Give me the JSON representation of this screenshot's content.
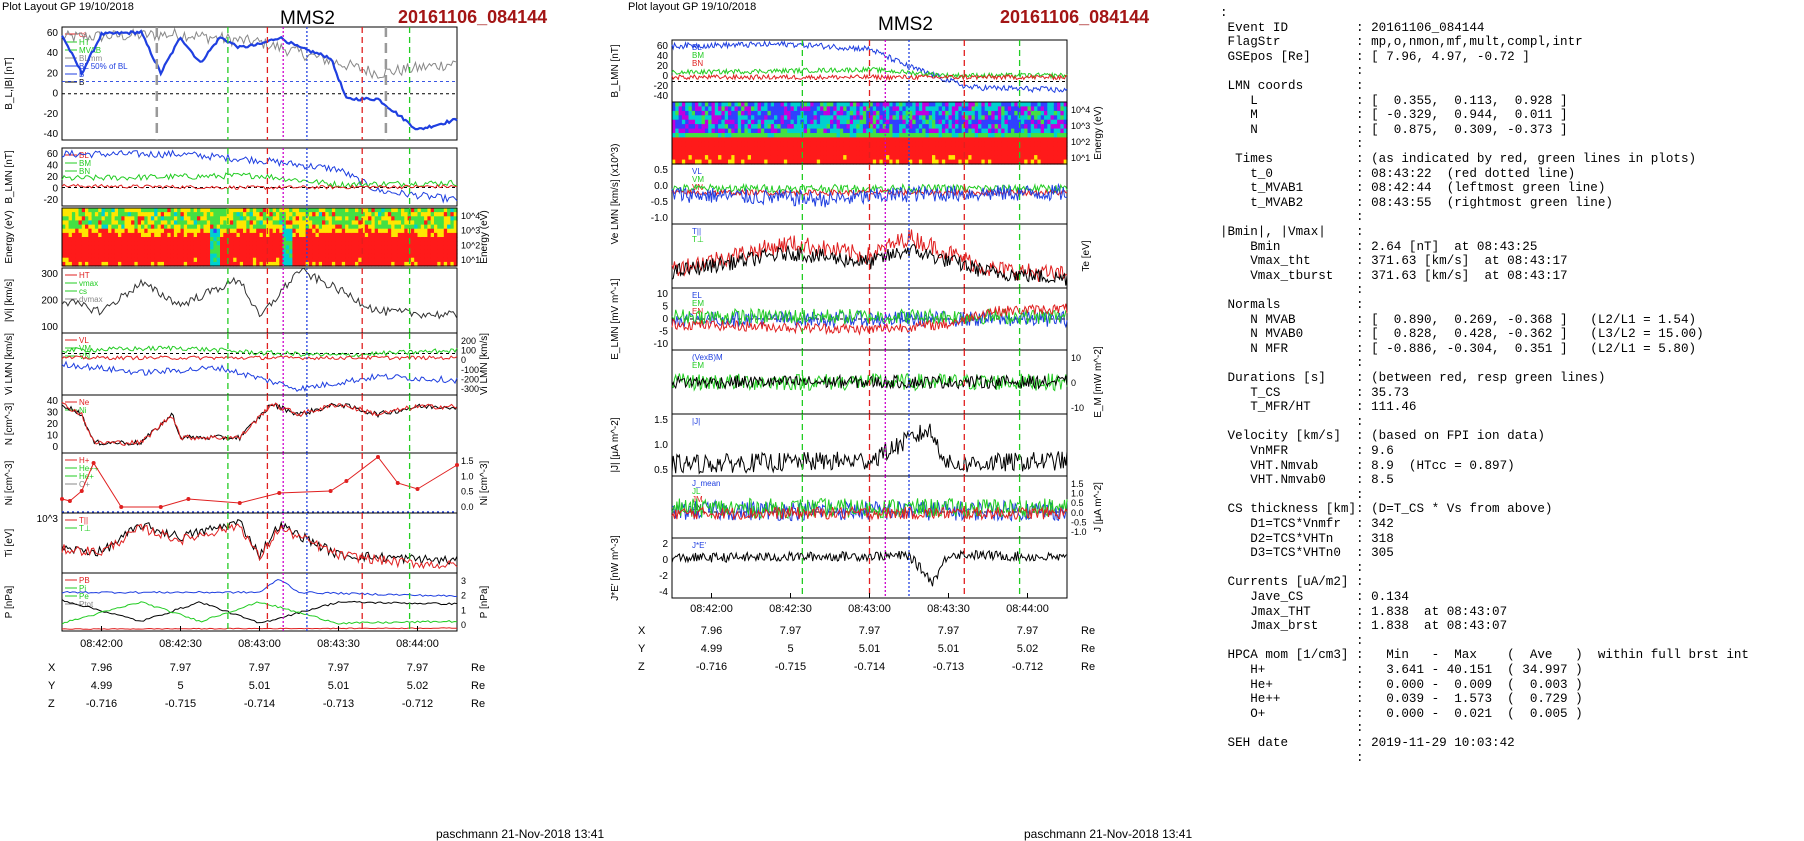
{
  "left_figure": {
    "header": "Plot Layout GP 19/10/2018",
    "mms": "MMS2",
    "event": "20161106_084144",
    "footer": "paschmann 21-Nov-2018 13:41",
    "time_ticks": [
      "08:42:00",
      "08:42:30",
      "08:43:00",
      "08:43:30",
      "08:44:00"
    ],
    "panels": [
      {
        "id": "BL",
        "ylabel": "B_L,|B| [nT]",
        "ylim": [
          -45,
          65
        ],
        "ticks": [
          "60",
          "40",
          "20",
          "0",
          "-20",
          "-40"
        ],
        "legend": [
          "cs",
          "HT",
          "MVAB",
          "BLmm",
          "BL 50% of BL",
          "B",
          "B"
        ]
      },
      {
        "id": "BLMN",
        "ylabel": "B_LMN [nT]",
        "ylim": [
          -30,
          65
        ],
        "ticks": [
          "60",
          "40",
          "20",
          "0",
          "-20"
        ],
        "legend": [
          "BL",
          "BM",
          "BN"
        ]
      },
      {
        "id": "Espec",
        "ylabel": "Energy (eV)",
        "ticks_right": [
          "10^4",
          "10^3",
          "10^2",
          "10^1"
        ]
      },
      {
        "id": "Vi",
        "ylabel": "|Vi| [km/s]",
        "ticks": [
          "300",
          "200",
          "100"
        ],
        "legend": [
          "HT",
          "vmax",
          "cs",
          "dvmax"
        ]
      },
      {
        "id": "ViLMN",
        "ylabel": "Vi LMN [km/s]",
        "ticks_right": [
          "200",
          "100",
          "0",
          "-100",
          "-200",
          "-300"
        ],
        "legend": [
          "VL",
          "VM",
          "VN"
        ]
      },
      {
        "id": "N",
        "ylabel": "N [cm^-3]",
        "ticks": [
          "40",
          "30",
          "20",
          "10",
          "0"
        ],
        "legend": [
          "Ne",
          "Ni"
        ]
      },
      {
        "id": "Ni",
        "ylabel": "Ni [cm^-3]",
        "ticks_right": [
          "1.5",
          "1.0",
          "0.5",
          "0.0"
        ],
        "legend": [
          "H+",
          "He++",
          "He+",
          "O+"
        ]
      },
      {
        "id": "Ti",
        "ylabel": "Ti [eV]",
        "ticks": [
          "10^3"
        ],
        "legend": [
          "T||",
          "T⊥"
        ]
      },
      {
        "id": "P",
        "ylabel": "P [nPa]",
        "ticks_right": [
          "3",
          "2",
          "1",
          "0"
        ],
        "legend": [
          "PB",
          "Pi",
          "Pe",
          "Ptot"
        ]
      }
    ],
    "x_row": {
      "label": "X",
      "values": [
        "7.96",
        "7.97",
        "7.97",
        "7.97",
        "7.97"
      ],
      "unit": "Re"
    },
    "y_row": {
      "label": "Y",
      "values": [
        "4.99",
        "5",
        "5.01",
        "5.01",
        "5.02"
      ],
      "unit": "Re"
    },
    "z_row": {
      "label": "Z",
      "values": [
        "-0.716",
        "-0.715",
        "-0.714",
        "-0.713",
        "-0.712"
      ],
      "unit": "Re"
    }
  },
  "right_figure": {
    "header": "Plot layout GP 19/10/2018",
    "mms": "MMS2",
    "event": "20161106_084144",
    "footer": "paschmann 21-Nov-2018 13:41",
    "time_ticks": [
      "08:42:00",
      "08:42:30",
      "08:43:00",
      "08:43:30",
      "08:44:00"
    ],
    "panels": [
      {
        "id": "BLMN",
        "ylabel": "B_LMN [nT]",
        "ticks": [
          "60",
          "40",
          "20",
          "0",
          "-20",
          "-40"
        ],
        "legend": [
          "BL",
          "BM",
          "BN"
        ]
      },
      {
        "id": "Espec",
        "ylabel": "Energy (eV)",
        "ticks_right": [
          "10^4",
          "10^3",
          "10^2",
          "10^1"
        ]
      },
      {
        "id": "VeLMN",
        "ylabel": "Ve LMN [km/s] (x10^3)",
        "ticks": [
          "0.5",
          "0.0",
          "-0.5",
          "-1.0"
        ],
        "legend": [
          "VL",
          "VM",
          "VN"
        ]
      },
      {
        "id": "Te",
        "ylabel": "Te [eV]",
        "legend": [
          "T||",
          "T⊥"
        ]
      },
      {
        "id": "ELMN",
        "ylabel": "E_LMN [mV m^-1]",
        "ticks": [
          "10",
          "5",
          "0",
          "-5",
          "-10"
        ],
        "legend": [
          "EL",
          "EM",
          "EN"
        ]
      },
      {
        "id": "EM",
        "ylabel": "E_M [mW m^-2]",
        "ticks_right": [
          "10",
          "0",
          "-10"
        ],
        "legend": [
          "(VexB)M",
          "EM"
        ]
      },
      {
        "id": "J",
        "ylabel": "|J| [μA m^-2]",
        "ticks": [
          "1.5",
          "1.0",
          "0.5"
        ],
        "legend": [
          "|J|"
        ]
      },
      {
        "id": "JLMN",
        "ylabel": "J [μA m^-2]",
        "ticks_right": [
          "1.5",
          "1.0",
          "0.5",
          "0.0",
          "-0.5",
          "-1.0"
        ],
        "legend": [
          "J_mean",
          "JL",
          "JM",
          "JN"
        ]
      },
      {
        "id": "JE",
        "ylabel": "J*E' [nW m^-3]",
        "ticks": [
          "2",
          "0",
          "-2",
          "-4"
        ],
        "legend": [
          "J*E'"
        ]
      }
    ],
    "x_row": {
      "label": "X",
      "values": [
        "7.96",
        "7.97",
        "7.97",
        "7.97",
        "7.97"
      ],
      "unit": "Re"
    },
    "y_row": {
      "label": "Y",
      "values": [
        "4.99",
        "5",
        "5.01",
        "5.01",
        "5.02"
      ],
      "unit": "Re"
    },
    "z_row": {
      "label": "Z",
      "values": [
        "-0.716",
        "-0.715",
        "-0.714",
        "-0.713",
        "-0.712"
      ],
      "unit": "Re"
    }
  },
  "chart_data": [
    {
      "type": "line",
      "title": "MMS2 20161106_084144",
      "xlabel": "",
      "x_ticks": [
        "08:42:00",
        "08:42:30",
        "08:43:00",
        "08:43:30",
        "08:44:00"
      ],
      "panels": [
        {
          "ylabel": "B_L,|B| [nT]",
          "ylim": [
            -45,
            65
          ],
          "series": [
            {
              "name": "BL",
              "points": [
                [
                  0,
                  57
                ],
                [
                  0.05,
                  20
                ],
                [
                  0.1,
                  58
                ],
                [
                  0.2,
                  60
                ],
                [
                  0.25,
                  20
                ],
                [
                  0.3,
                  55
                ],
                [
                  0.35,
                  30
                ],
                [
                  0.4,
                  55
                ],
                [
                  0.45,
                  45
                ],
                [
                  0.5,
                  48
                ],
                [
                  0.55,
                  55
                ],
                [
                  0.6,
                  45
                ],
                [
                  0.68,
                  35
                ],
                [
                  0.72,
                  -5
                ],
                [
                  0.8,
                  -5
                ],
                [
                  0.9,
                  -35
                ],
                [
                  1.0,
                  -25
                ]
              ]
            }
          ]
        },
        {
          "ylabel": "N [cm^-3]",
          "ylim": [
            0,
            45
          ],
          "series": [
            {
              "name": "Ni",
              "points": [
                [
                  0,
                  38
                ],
                [
                  0.05,
                  30
                ],
                [
                  0.08,
                  8
                ],
                [
                  0.2,
                  8
                ],
                [
                  0.28,
                  30
                ],
                [
                  0.3,
                  12
                ],
                [
                  0.45,
                  12
                ],
                [
                  0.5,
                  28
                ],
                [
                  0.53,
                  38
                ],
                [
                  0.6,
                  30
                ],
                [
                  0.7,
                  38
                ],
                [
                  0.8,
                  30
                ],
                [
                  0.9,
                  36
                ],
                [
                  1.0,
                  36
                ]
              ]
            }
          ]
        },
        {
          "ylabel": "Ni [cm^-3]",
          "ylim": [
            0,
            1.5
          ],
          "series": [
            {
              "name": "He++",
              "points": [
                [
                  0,
                  0.35
                ],
                [
                  0.02,
                  0.3
                ],
                [
                  0.05,
                  0.55
                ],
                [
                  0.08,
                  1.25
                ],
                [
                  0.15,
                  0.15
                ],
                [
                  0.25,
                  0.15
                ],
                [
                  0.32,
                  0.35
                ],
                [
                  0.45,
                  0.25
                ],
                [
                  0.55,
                  0.5
                ],
                [
                  0.68,
                  0.55
                ],
                [
                  0.72,
                  0.8
                ],
                [
                  0.8,
                  1.4
                ],
                [
                  0.85,
                  0.75
                ],
                [
                  0.9,
                  0.6
                ],
                [
                  1.0,
                  1.2
                ]
              ]
            }
          ]
        }
      ]
    },
    {
      "type": "line",
      "title": "MMS2 20161106_084144",
      "xlabel": "",
      "x_ticks": [
        "08:42:00",
        "08:42:30",
        "08:43:00",
        "08:43:30",
        "08:44:00"
      ],
      "panels": [
        {
          "ylabel": "|J| [μA m^-2]",
          "ylim": [
            0,
            1.6
          ],
          "series": [
            {
              "name": "|J|",
              "points": [
                [
                  0,
                  0.3
                ],
                [
                  0.5,
                  0.4
                ],
                [
                  0.65,
                  1.2
                ],
                [
                  0.7,
                  0.3
                ],
                [
                  1.0,
                  0.4
                ]
              ]
            }
          ]
        },
        {
          "ylabel": "J*E' [nW m^-3]",
          "ylim": [
            -5,
            2.5
          ],
          "series": [
            {
              "name": "J*E'",
              "points": [
                [
                  0,
                  0
                ],
                [
                  0.6,
                  0.3
                ],
                [
                  0.66,
                  -3
                ],
                [
                  0.7,
                  0.5
                ],
                [
                  1.0,
                  0
                ]
              ]
            }
          ]
        }
      ]
    }
  ],
  "info_panel": {
    "lines": [
      {
        "label": ":",
        "value": ""
      },
      {
        "label": " Event ID",
        "value": ": 20161106_084144"
      },
      {
        "label": " FlagStr",
        "value": ": mp,o,nmon,mf,mult,compl,intr"
      },
      {
        "label": " GSEpos [Re]",
        "value": ": [ 7.96, 4.97, -0.72 ]"
      },
      {
        "label": "",
        "value": ":"
      },
      {
        "label": " LMN coords",
        "value": ":"
      },
      {
        "label": "    L",
        "value": ": [  0.355,  0.113,  0.928 ]"
      },
      {
        "label": "    M",
        "value": ": [ -0.329,  0.944,  0.011 ]"
      },
      {
        "label": "    N",
        "value": ": [  0.875,  0.309, -0.373 ]"
      },
      {
        "label": "",
        "value": ":"
      },
      {
        "label": "  Times",
        "value": ": (as indicated by red, green lines in plots)"
      },
      {
        "label": "    t_0",
        "value": ": 08:43:22  (red dotted line)"
      },
      {
        "label": "    t_MVAB1",
        "value": ": 08:42:44  (leftmost green line)"
      },
      {
        "label": "    t_MVAB2",
        "value": ": 08:43:55  (rightmost green line)"
      },
      {
        "label": "",
        "value": ":"
      },
      {
        "label": "|Bmin|, |Vmax|",
        "value": ":"
      },
      {
        "label": "    Bmin",
        "value": ": 2.64 [nT]  at 08:43:25"
      },
      {
        "label": "    Vmax_tht",
        "value": ": 371.63 [km/s]  at 08:43:17"
      },
      {
        "label": "    Vmax_tburst",
        "value": ": 371.63 [km/s]  at 08:43:17"
      },
      {
        "label": "",
        "value": ":"
      },
      {
        "label": " Normals",
        "value": ":"
      },
      {
        "label": "    N MVAB",
        "value": ": [  0.890,  0.269, -0.368 ]   (L2/L1 = 1.54)"
      },
      {
        "label": "    N MVAB0",
        "value": ": [  0.828,  0.428, -0.362 ]   (L3/L2 = 15.00)"
      },
      {
        "label": "    N MFR",
        "value": ": [ -0.886, -0.304,  0.351 ]   (L2/L1 = 5.80)"
      },
      {
        "label": "",
        "value": ":"
      },
      {
        "label": " Durations [s]",
        "value": ": (between red, resp green lines)"
      },
      {
        "label": "    T_CS",
        "value": ": 35.73"
      },
      {
        "label": "    T_MFR/HT",
        "value": ": 111.46"
      },
      {
        "label": "",
        "value": ":"
      },
      {
        "label": " Velocity [km/s]",
        "value": ": (based on FPI ion data)"
      },
      {
        "label": "    VnMFR",
        "value": ": 9.6"
      },
      {
        "label": "    VHT.Nmvab",
        "value": ": 8.9  (HTcc = 0.897)"
      },
      {
        "label": "    VHT.Nmvab0",
        "value": ": 8.5"
      },
      {
        "label": "",
        "value": ":"
      },
      {
        "label": " CS thickness [km]",
        "value": ": (D=T_CS * Vs from above)"
      },
      {
        "label": "    D1=TCS*Vnmfr",
        "value": ": 342"
      },
      {
        "label": "    D2=TCS*VHTn",
        "value": ": 318"
      },
      {
        "label": "    D3=TCS*VHTn0",
        "value": ": 305"
      },
      {
        "label": "",
        "value": ":"
      },
      {
        "label": " Currents [uA/m2]",
        "value": ":"
      },
      {
        "label": "    Jave_CS",
        "value": ": 0.134"
      },
      {
        "label": "    Jmax_THT",
        "value": ": 1.838  at 08:43:07"
      },
      {
        "label": "    Jmax_brst",
        "value": ": 1.838  at 08:43:07"
      },
      {
        "label": "",
        "value": ":"
      },
      {
        "label": " HPCA mom [1/cm3]",
        "value": ":   Min   -  Max    (  Ave   )  within full brst int"
      },
      {
        "label": "    H+",
        "value": ":   3.641 - 40.151  ( 34.997 )"
      },
      {
        "label": "    He+",
        "value": ":   0.000 -  0.009  (  0.003 )"
      },
      {
        "label": "    He++",
        "value": ":   0.039 -  1.573  (  0.729 )"
      },
      {
        "label": "    O+",
        "value": ":   0.000 -  0.021  (  0.005 )"
      },
      {
        "label": "",
        "value": ":"
      },
      {
        "label": " SEH date",
        "value": ": 2019-11-29 10:03:42"
      },
      {
        "label": "",
        "value": ":"
      }
    ]
  },
  "colors": {
    "red": "#e02020",
    "green": "#22cc22",
    "blue": "#1f3fe0",
    "black": "#000000",
    "gray": "#888888",
    "magenta": "#cc00cc",
    "title_red": "#a31515"
  }
}
